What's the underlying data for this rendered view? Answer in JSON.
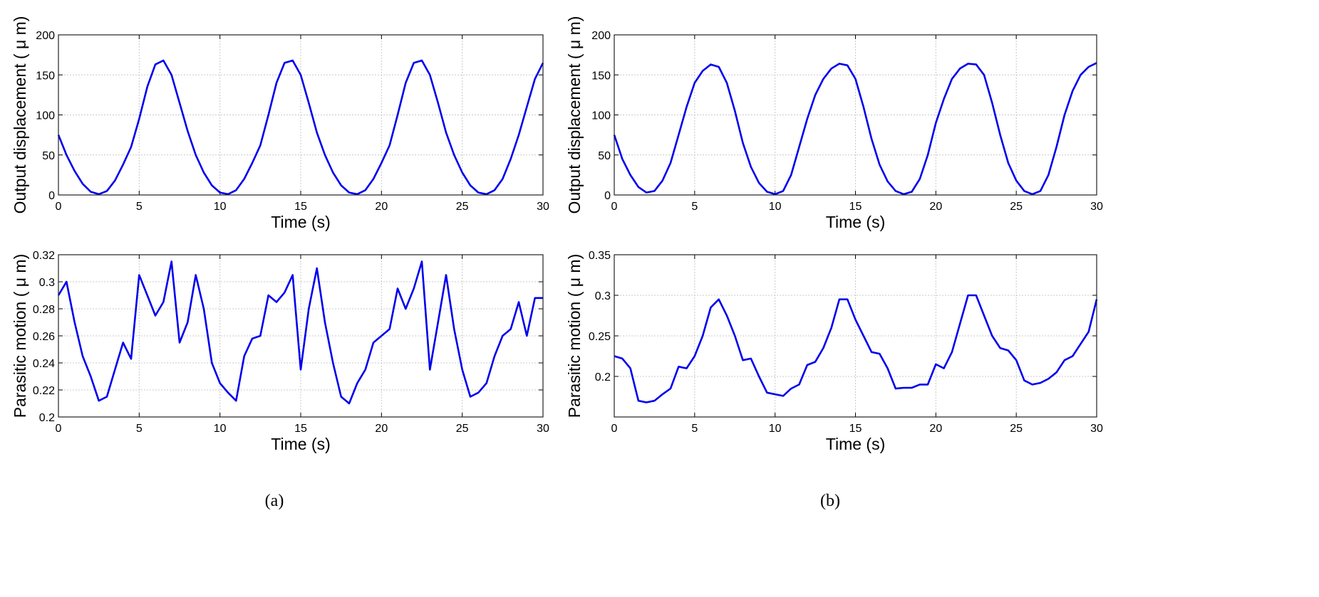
{
  "captions": [
    "(a)",
    "(b)"
  ],
  "line_color": "#0000ee",
  "chart_data": [
    {
      "type": "line",
      "panel": "a-top",
      "xlabel": "Time (s)",
      "ylabel": "Output displacement ( μ m)",
      "xlim": [
        0,
        30
      ],
      "ylim": [
        0,
        200
      ],
      "xticks": [
        0,
        5,
        10,
        15,
        20,
        25,
        30
      ],
      "yticks": [
        0,
        50,
        100,
        150,
        200
      ],
      "ytick_labels": [
        "0",
        "50",
        "100",
        "150",
        "200"
      ],
      "grid": true,
      "x_step": 0.5,
      "values": [
        75,
        50,
        30,
        14,
        4,
        1,
        5,
        18,
        38,
        60,
        95,
        135,
        163,
        168,
        150,
        115,
        80,
        50,
        28,
        12,
        3,
        1,
        6,
        20,
        40,
        62,
        100,
        140,
        165,
        168,
        150,
        115,
        78,
        50,
        28,
        12,
        3,
        1,
        6,
        20,
        40,
        62,
        100,
        140,
        165,
        168,
        150,
        115,
        78,
        50,
        28,
        12,
        3,
        1,
        6,
        20,
        45,
        75,
        110,
        145,
        165
      ]
    },
    {
      "type": "line",
      "panel": "b-top",
      "xlabel": "Time (s)",
      "ylabel": "Output displacement ( μ m)",
      "xlim": [
        0,
        30
      ],
      "ylim": [
        0,
        200
      ],
      "xticks": [
        0,
        5,
        10,
        15,
        20,
        25,
        30
      ],
      "yticks": [
        0,
        50,
        100,
        150,
        200
      ],
      "ytick_labels": [
        "0",
        "50",
        "100",
        "150",
        "200"
      ],
      "grid": true,
      "x_step": 0.5,
      "values": [
        75,
        45,
        25,
        10,
        3,
        5,
        18,
        40,
        75,
        110,
        140,
        155,
        163,
        160,
        140,
        105,
        65,
        35,
        15,
        4,
        1,
        5,
        25,
        60,
        95,
        125,
        145,
        158,
        164,
        162,
        145,
        110,
        70,
        38,
        17,
        5,
        1,
        4,
        20,
        50,
        90,
        120,
        145,
        158,
        164,
        163,
        150,
        115,
        75,
        40,
        18,
        5,
        1,
        5,
        25,
        60,
        100,
        130,
        150,
        160,
        165
      ]
    },
    {
      "type": "line",
      "panel": "a-bottom",
      "xlabel": "Time (s)",
      "ylabel": "Parasitic motion ( μ m)",
      "xlim": [
        0,
        30
      ],
      "ylim": [
        0.2,
        0.32
      ],
      "xticks": [
        0,
        5,
        10,
        15,
        20,
        25,
        30
      ],
      "yticks": [
        0.2,
        0.22,
        0.24,
        0.26,
        0.28,
        0.3,
        0.32
      ],
      "ytick_labels": [
        "0.2",
        "0.22",
        "0.24",
        "0.26",
        "0.28",
        "0.3",
        "0.32"
      ],
      "grid": true,
      "x_step": 0.5,
      "values": [
        0.29,
        0.3,
        0.27,
        0.245,
        0.23,
        0.212,
        0.215,
        0.235,
        0.255,
        0.243,
        0.305,
        0.29,
        0.275,
        0.285,
        0.315,
        0.255,
        0.27,
        0.305,
        0.28,
        0.24,
        0.225,
        0.218,
        0.212,
        0.245,
        0.258,
        0.26,
        0.29,
        0.285,
        0.292,
        0.305,
        0.235,
        0.28,
        0.31,
        0.27,
        0.24,
        0.215,
        0.21,
        0.225,
        0.235,
        0.255,
        0.26,
        0.265,
        0.295,
        0.28,
        0.295,
        0.315,
        0.235,
        0.27,
        0.305,
        0.265,
        0.235,
        0.215,
        0.218,
        0.225,
        0.245,
        0.26,
        0.265,
        0.285,
        0.26,
        0.288,
        0.288
      ]
    },
    {
      "type": "line",
      "panel": "b-bottom",
      "xlabel": "Time (s)",
      "ylabel": "Parasitic motion ( μ m)",
      "xlim": [
        0,
        30
      ],
      "ylim": [
        0.15,
        0.35
      ],
      "xticks": [
        0,
        5,
        10,
        15,
        20,
        25,
        30
      ],
      "yticks": [
        0.2,
        0.25,
        0.3,
        0.35
      ],
      "ytick_labels": [
        "0.2",
        "0.25",
        "0.3",
        "0.35"
      ],
      "grid": true,
      "x_step": 0.5,
      "values": [
        0.225,
        0.222,
        0.21,
        0.17,
        0.168,
        0.17,
        0.178,
        0.185,
        0.212,
        0.21,
        0.225,
        0.25,
        0.285,
        0.295,
        0.275,
        0.25,
        0.22,
        0.222,
        0.2,
        0.18,
        0.178,
        0.176,
        0.185,
        0.19,
        0.214,
        0.218,
        0.235,
        0.26,
        0.295,
        0.295,
        0.27,
        0.25,
        0.23,
        0.228,
        0.21,
        0.185,
        0.186,
        0.186,
        0.19,
        0.19,
        0.215,
        0.21,
        0.23,
        0.265,
        0.3,
        0.3,
        0.275,
        0.25,
        0.235,
        0.232,
        0.22,
        0.195,
        0.19,
        0.192,
        0.197,
        0.205,
        0.22,
        0.225,
        0.24,
        0.255,
        0.295
      ]
    }
  ]
}
